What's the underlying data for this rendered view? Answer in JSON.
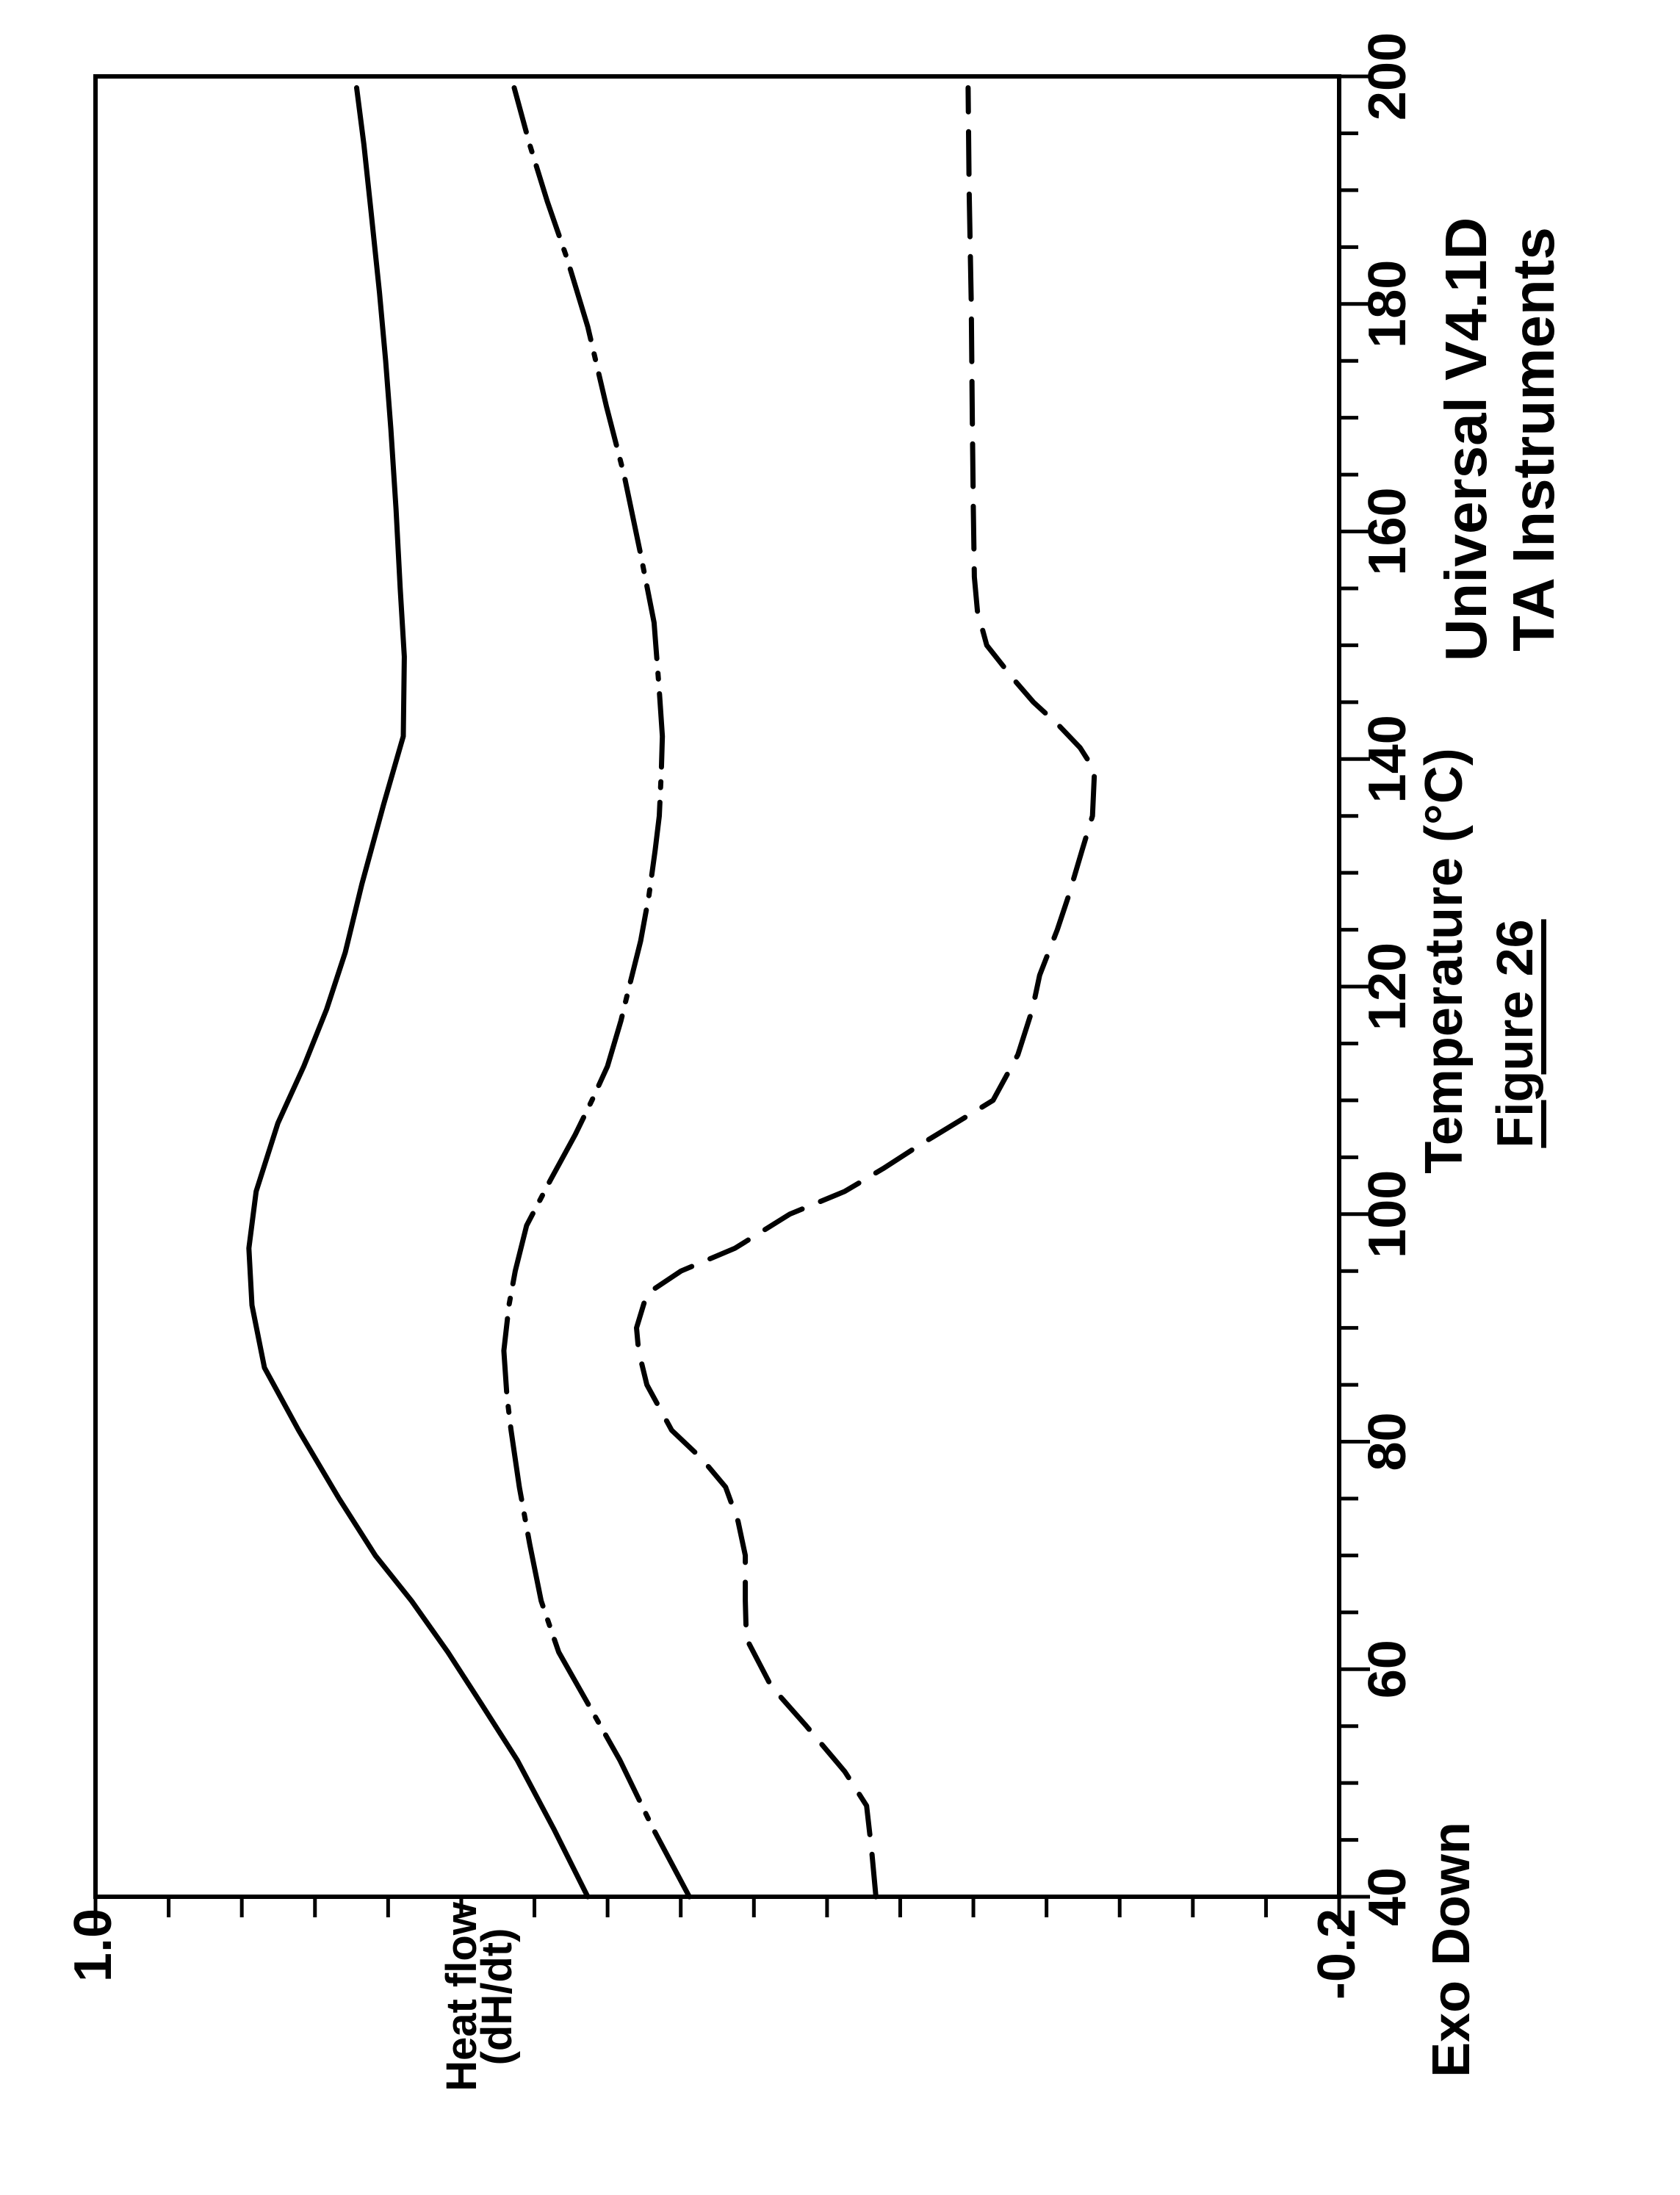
{
  "figure": {
    "caption": "Figure 26",
    "watermark_line1": "Universal V4.1D",
    "watermark_line2": "TA Instruments",
    "exo_label": "Exo Down"
  },
  "colors": {
    "ink": "#000000",
    "background": "#ffffff"
  },
  "chart_data": {
    "type": "line",
    "title": "",
    "xlabel": "Temperature (°C)",
    "ylabel_line1": "Heat flow",
    "ylabel_line2": "(dH/dt)",
    "xlim": [
      40,
      200
    ],
    "ylim": [
      -0.2,
      1.0
    ],
    "x_major_ticks": [
      40,
      60,
      80,
      100,
      120,
      140,
      160,
      180,
      200
    ],
    "x_minor_step": 5,
    "y_axis_end_labels": {
      "top": "1.0",
      "bottom": "-0.2"
    },
    "grid": false,
    "legend": "none",
    "layout_note": "entire chart is rotated 90 degrees counter-clockwise on the page; temperature axis runs bottom-to-top on the right, heat-flow axis runs left-to-right along the bottom",
    "series": [
      {
        "name": "solid",
        "style": "solid",
        "x": [
          40,
          46,
          52,
          57,
          61.5,
          66,
          70,
          75,
          81,
          86.5,
          92,
          97,
          102,
          108,
          113,
          118,
          123,
          129,
          136,
          142,
          149,
          155,
          162,
          169,
          175,
          181,
          188,
          194,
          199
        ],
        "y": [
          0.525,
          0.558,
          0.593,
          0.628,
          0.66,
          0.695,
          0.73,
          0.765,
          0.804,
          0.837,
          0.849,
          0.852,
          0.845,
          0.824,
          0.799,
          0.777,
          0.759,
          0.743,
          0.722,
          0.703,
          0.702,
          0.706,
          0.71,
          0.715,
          0.72,
          0.726,
          0.734,
          0.741,
          0.748
        ]
      },
      {
        "name": "dash-dot",
        "style": "dashdot",
        "x": [
          40,
          46,
          52,
          57,
          61.5,
          66,
          71,
          76,
          81,
          84,
          88,
          92,
          95,
          99,
          103,
          107,
          110,
          113,
          117,
          120,
          124,
          128,
          132,
          135,
          139,
          142,
          146,
          152,
          158,
          165,
          171,
          178,
          184,
          189,
          194,
          199
        ],
        "y": [
          0.427,
          0.462,
          0.494,
          0.525,
          0.553,
          0.57,
          0.581,
          0.591,
          0.599,
          0.603,
          0.606,
          0.601,
          0.595,
          0.584,
          0.561,
          0.537,
          0.521,
          0.506,
          0.493,
          0.485,
          0.474,
          0.466,
          0.46,
          0.456,
          0.454,
          0.453,
          0.456,
          0.461,
          0.474,
          0.49,
          0.507,
          0.525,
          0.545,
          0.564,
          0.581,
          0.596
        ]
      },
      {
        "name": "dashed",
        "style": "dashed",
        "x": [
          40,
          44,
          48,
          51,
          55,
          58.5,
          62.7,
          66,
          70,
          73,
          76,
          78.5,
          81,
          85,
          88,
          90,
          93,
          95,
          97,
          100,
          102,
          104,
          106,
          108,
          110,
          114,
          118,
          121,
          125,
          128,
          132,
          135,
          139,
          141,
          143,
          145,
          147,
          150,
          153,
          156,
          162,
          170,
          180,
          190,
          199
        ],
        "y": [
          0.247,
          0.251,
          0.256,
          0.277,
          0.314,
          0.348,
          0.372,
          0.373,
          0.373,
          0.38,
          0.392,
          0.415,
          0.444,
          0.468,
          0.476,
          0.478,
          0.468,
          0.435,
          0.383,
          0.33,
          0.277,
          0.24,
          0.206,
          0.17,
          0.134,
          0.11,
          0.096,
          0.089,
          0.072,
          0.061,
          0.048,
          0.038,
          0.036,
          0.05,
          0.071,
          0.095,
          0.114,
          0.14,
          0.149,
          0.152,
          0.153,
          0.154,
          0.155,
          0.157,
          0.158
        ]
      }
    ]
  }
}
